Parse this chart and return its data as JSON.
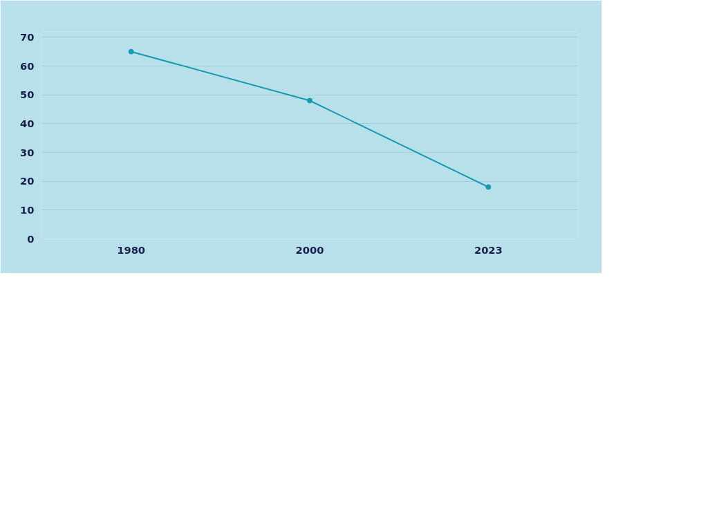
{
  "chart_data": {
    "type": "line",
    "categories": [
      "1980",
      "2000",
      "2023"
    ],
    "series": [
      {
        "color": "#1699b3",
        "values": [
          65,
          48,
          18
        ]
      }
    ],
    "ylim": [
      0,
      72
    ],
    "yticks": [
      0,
      10,
      20,
      30,
      40,
      50,
      60,
      70
    ],
    "grid": "y",
    "marker": "circle",
    "line_style": "solid"
  }
}
